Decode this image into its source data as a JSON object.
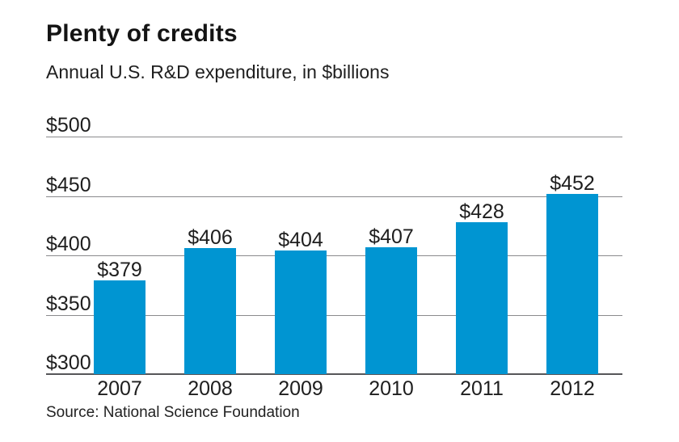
{
  "figure": {
    "title": "Plenty of credits",
    "subtitle": "Annual U.S. R&D expenditure, in $billions",
    "source": "Source: National Science Foundation"
  },
  "colors": {
    "bar": "#0095d2",
    "gridline": "#8a8a8d",
    "axis_line": "#565659",
    "title_text": "#141414",
    "label_text": "#1e1e1e"
  },
  "chart_data": {
    "type": "bar",
    "title": "Plenty of credits",
    "subtitle": "Annual U.S. R&D expenditure, in $billions",
    "categories": [
      "2007",
      "2008",
      "2009",
      "2010",
      "2011",
      "2012"
    ],
    "values": [
      379,
      406,
      404,
      407,
      428,
      452
    ],
    "bar_labels": [
      "$379",
      "$406",
      "$404",
      "$407",
      "$428",
      "$452"
    ],
    "xlabel": "",
    "ylabel": "",
    "ylim": [
      300,
      500
    ],
    "yticks": [
      300,
      350,
      400,
      450,
      500
    ],
    "ytick_labels": [
      "$300",
      "$350",
      "$400",
      "$450",
      "$500"
    ],
    "grid": true,
    "legend": false,
    "bar_color": "#0095d2",
    "source": "Source: National Science Foundation"
  }
}
